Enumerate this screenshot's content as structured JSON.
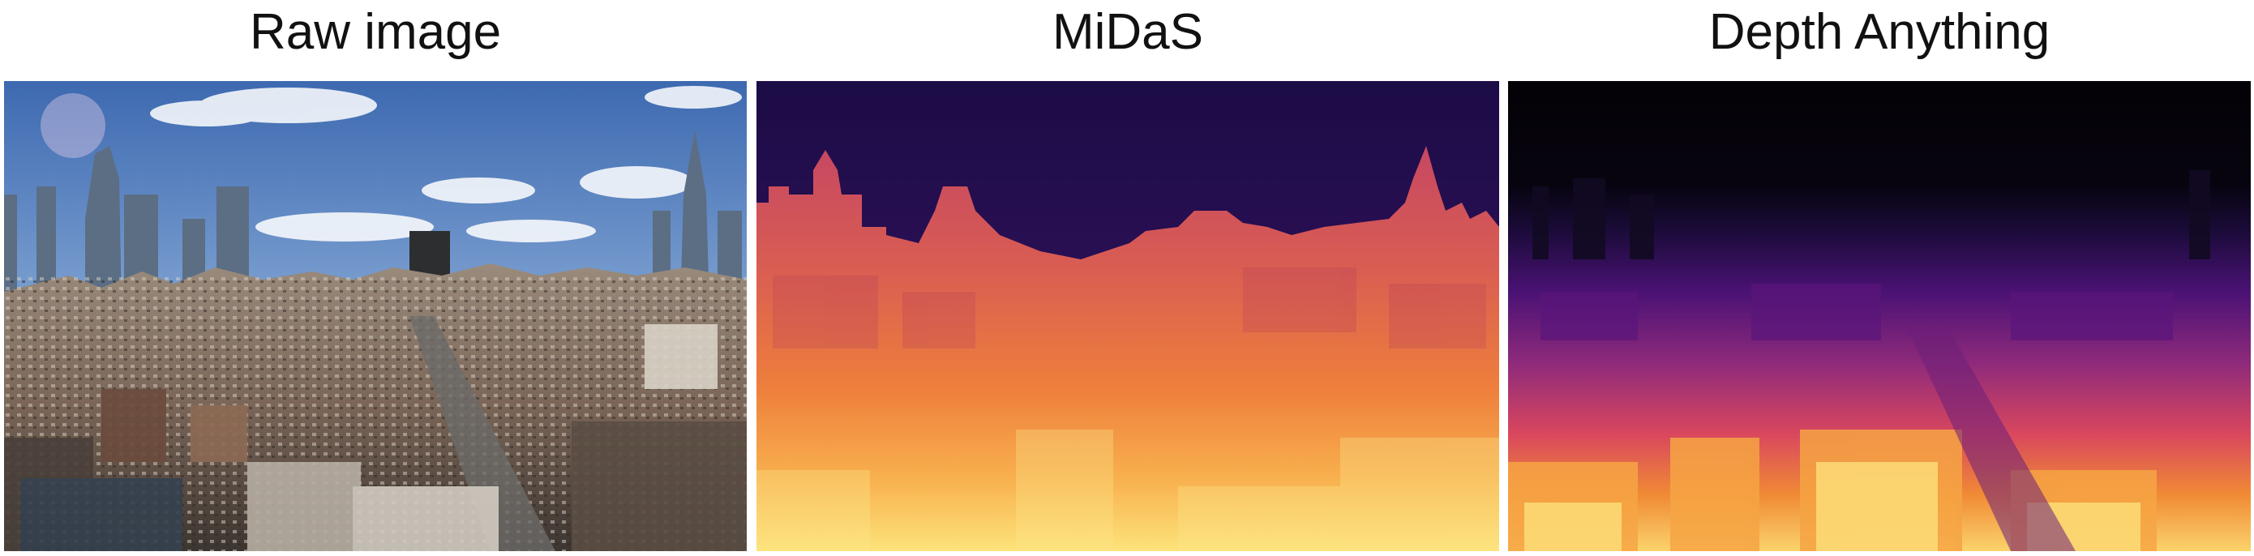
{
  "panels": [
    {
      "id": "raw",
      "title": "Raw image"
    },
    {
      "id": "midas",
      "title": "MiDaS"
    },
    {
      "id": "depth_anything",
      "title": "Depth Anything"
    }
  ],
  "colors": {
    "sky_top": "#3f6fb8",
    "sky_bottom": "#a9c3e2",
    "city_dark": "#3a3430",
    "city_mid": "#8a7566",
    "city_light": "#c9c2b8",
    "depth_far": "#13072e",
    "depth_mid_purple": "#4a1170",
    "depth_mid_red": "#c9455d",
    "depth_orange": "#ef7d3a",
    "depth_near": "#fcd770"
  }
}
